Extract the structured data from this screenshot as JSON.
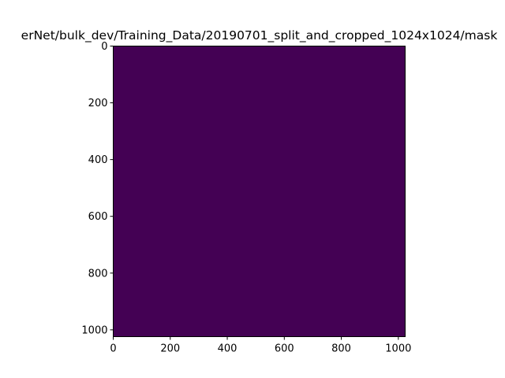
{
  "chart_data": {
    "type": "heatmap",
    "title": "erNet/bulk_dev/Training_Data/20190701_split_and_cropped_1024x1024/mask",
    "xlabel": "",
    "ylabel": "",
    "image_width": 1024,
    "image_height": 1024,
    "xlim": [
      0,
      1024
    ],
    "ylim": [
      1024,
      0
    ],
    "x_ticks": [
      0,
      200,
      400,
      600,
      800,
      1000
    ],
    "y_ticks": [
      0,
      200,
      400,
      600,
      800,
      1000
    ],
    "x_tick_labels": [
      "0",
      "200",
      "400",
      "600",
      "800",
      "1000"
    ],
    "y_tick_labels": [
      "0",
      "200",
      "400",
      "600",
      "800",
      "1000"
    ],
    "values": [
      [
        0
      ]
    ],
    "colormap": "viridis",
    "fill_color": "#440154",
    "grid": false
  }
}
